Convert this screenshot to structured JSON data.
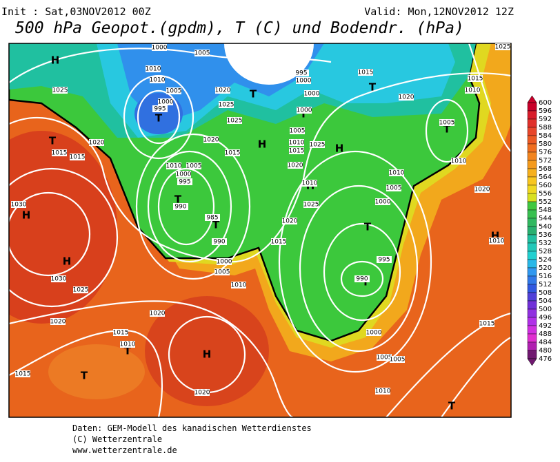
{
  "header": {
    "init": "Init : Sat,03NOV2012 00Z",
    "valid": "Valid: Mon,12NOV2012 12Z",
    "title": "500 hPa Geopot.(gpdm), T (C) und Bodendr. (hPa)"
  },
  "colorbar": {
    "ticks": [
      600,
      596,
      592,
      588,
      584,
      580,
      576,
      572,
      568,
      564,
      560,
      556,
      552,
      548,
      544,
      540,
      536,
      532,
      528,
      524,
      520,
      516,
      512,
      508,
      504,
      500,
      496,
      492,
      488,
      484,
      480,
      476
    ],
    "colors": [
      "#c8002a",
      "#d81c2a",
      "#e0302a",
      "#e8462a",
      "#ec5a24",
      "#f06e20",
      "#f2841e",
      "#f49a1c",
      "#f6b01c",
      "#f8c61e",
      "#f0d820",
      "#d8e020",
      "#40c840",
      "#38c050",
      "#30b860",
      "#28b070",
      "#20c0a0",
      "#20c8b8",
      "#20d0d0",
      "#28b8e8",
      "#3098f0",
      "#3078e8",
      "#3058e0",
      "#5040d8",
      "#7030d8",
      "#9030e0",
      "#b030e8",
      "#d030e0",
      "#e030d0",
      "#b020b0",
      "#701870"
    ]
  },
  "map_labels": {
    "pressure_systems": [
      "H",
      "H",
      "H",
      "H",
      "H",
      "H",
      "H",
      "H",
      "T",
      "T",
      "T",
      "T",
      "T",
      "T",
      "T",
      "T",
      "T",
      "T",
      "T",
      "T",
      "T"
    ],
    "isobars": [
      "1000",
      "1005",
      "1010",
      "1010",
      "1005",
      "1000",
      "995",
      "1025",
      "1020",
      "1025",
      "1025",
      "1020",
      "1015",
      "1010",
      "1005",
      "1000",
      "995",
      "990",
      "985",
      "990",
      "1000",
      "1005",
      "1010",
      "1015",
      "1020",
      "1025",
      "1010",
      "1015",
      "1020",
      "1025",
      "1005",
      "1000",
      "1000",
      "995",
      "1000",
      "1015",
      "1020",
      "1015",
      "1010",
      "1005",
      "1010",
      "1020",
      "1010",
      "1005",
      "1000",
      "995",
      "990",
      "1000",
      "1005",
      "1005",
      "1010",
      "1015",
      "1010",
      "1020",
      "1015",
      "1015",
      "1030",
      "1030",
      "1025",
      "1020",
      "1020",
      "1015",
      "1010",
      "1015",
      "1020",
      "1025",
      "1010"
    ]
  },
  "footer": {
    "line1": "Daten: GEM-Modell des kanadischen Wetterdienstes",
    "line2": "(C) Wetterzentrale",
    "line3": "www.wetterzentrale.de"
  }
}
